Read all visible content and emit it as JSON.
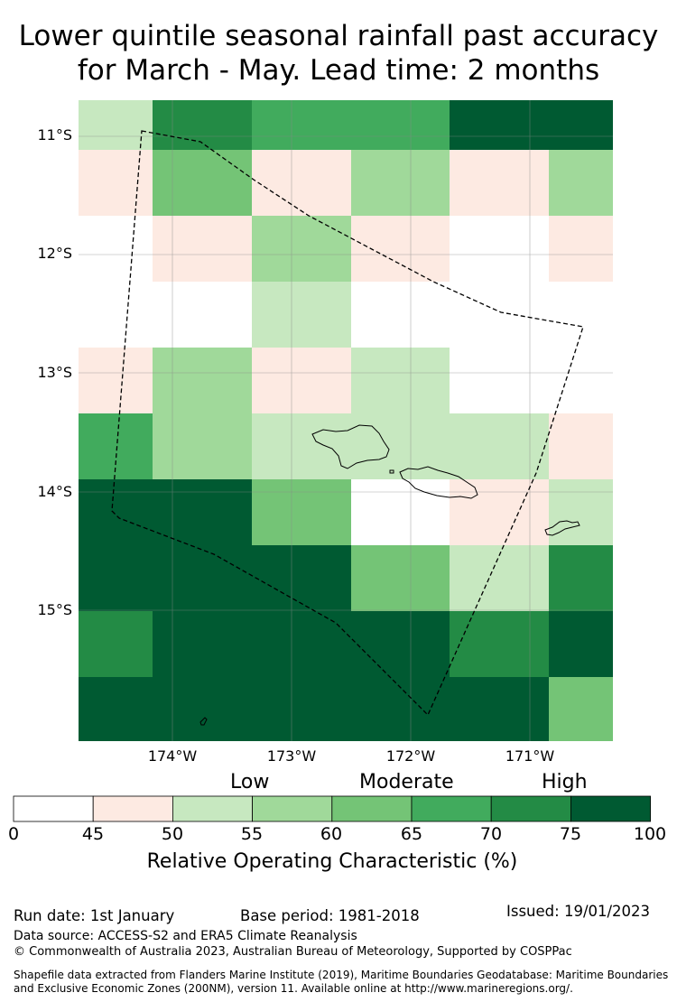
{
  "title": {
    "line1": "Lower quintile seasonal rainfall past accuracy",
    "line2": "for March - May. Lead time: 2 months"
  },
  "map": {
    "lat_labels": [
      "11°S",
      "12°S",
      "13°S",
      "14°S",
      "15°S"
    ],
    "lon_labels": [
      "174°W",
      "173°W",
      "172°W",
      "171°W"
    ],
    "grid_values": [
      [
        52,
        72,
        68,
        68,
        80,
        80
      ],
      [
        47,
        62,
        47,
        57,
        47,
        57
      ],
      [
        40,
        47,
        57,
        47,
        40,
        47
      ],
      [
        40,
        40,
        52,
        40,
        40,
        40
      ],
      [
        47,
        57,
        47,
        52,
        40,
        40
      ],
      [
        67,
        57,
        52,
        52,
        52,
        47
      ],
      [
        80,
        80,
        62,
        40,
        47,
        52
      ],
      [
        80,
        80,
        80,
        62,
        52,
        72
      ],
      [
        72,
        80,
        80,
        80,
        72,
        80
      ],
      [
        80,
        80,
        80,
        80,
        80,
        62
      ]
    ]
  },
  "legend": {
    "categories": [
      "Low",
      "Moderate",
      "High"
    ],
    "ticks": [
      "0",
      "45",
      "50",
      "55",
      "60",
      "65",
      "70",
      "75",
      "100"
    ],
    "colors": [
      "#ffffff",
      "#fdeae2",
      "#c7e8c0",
      "#a0d99a",
      "#74c476",
      "#41ab5d",
      "#238b45",
      "#005a32"
    ],
    "title": "Relative Operating Characteristic (%)"
  },
  "footer": {
    "run_date": "Run date: 1st January",
    "base_period": "Base period: 1981-2018",
    "issued": "Issued: 19/01/2023",
    "data_source": "Data source: ACCESS-S2 and ERA5 Climate Reanalysis",
    "copyright": "© Commonwealth of Australia 2023, Australian Bureau of Meteorology, Supported by COSPPac",
    "shapefile_line1": "Shapefile data extracted from Flanders Marine Institute (2019), Maritime Boundaries Geodatabase: Maritime Boundaries",
    "shapefile_line2": "and Exclusive Economic Zones (200NM), version 11. Available online at http://www.marineregions.org/."
  }
}
